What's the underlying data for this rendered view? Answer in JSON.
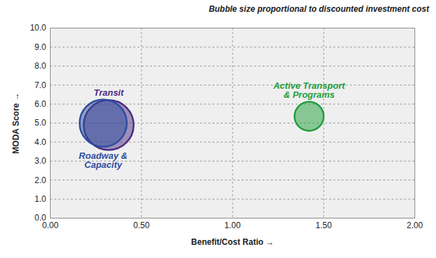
{
  "chart_data": {
    "type": "bubble",
    "title": "Bubble size proportional to discounted investment cost",
    "x_label": "Benefit/Cost Ratio",
    "y_label": "MODA Score",
    "xlim": [
      0,
      2
    ],
    "ylim": [
      0,
      10
    ],
    "xticks": [
      {
        "value": 0,
        "label": "0.00"
      },
      {
        "value": 0.5,
        "label": "0.50"
      },
      {
        "value": 1,
        "label": "1.00"
      },
      {
        "value": 1.5,
        "label": "1.50"
      },
      {
        "value": 2,
        "label": "2.00"
      }
    ],
    "yticks": [
      {
        "value": 0,
        "label": "0.0"
      },
      {
        "value": 1,
        "label": "1.0"
      },
      {
        "value": 2,
        "label": "2.0"
      },
      {
        "value": 3,
        "label": "3.0"
      },
      {
        "value": 4,
        "label": "4.0"
      },
      {
        "value": 5,
        "label": "5.0"
      },
      {
        "value": 6,
        "label": "6.0"
      },
      {
        "value": 7,
        "label": "7.0"
      },
      {
        "value": 8,
        "label": "8.0"
      },
      {
        "value": 9,
        "label": "9.0"
      },
      {
        "value": 10,
        "label": "10.0"
      }
    ],
    "grid": true,
    "series": [
      {
        "name": "Transit",
        "color": "#4b2d83",
        "x": [
          0.32
        ],
        "values": [
          4.9
        ],
        "sizes": [
          100
        ]
      },
      {
        "name": "Roadway & Capacity",
        "color": "#2e4da0",
        "x": [
          0.29
        ],
        "values": [
          5.0
        ],
        "sizes": [
          89
        ]
      },
      {
        "name": "Active Transport & Programs",
        "color": "#1f9e3b",
        "x": [
          1.42
        ],
        "values": [
          5.36
        ],
        "sizes": [
          34
        ]
      }
    ]
  }
}
